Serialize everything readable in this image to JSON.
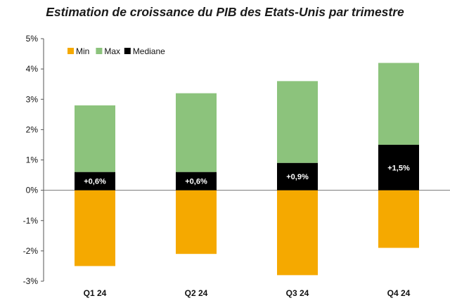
{
  "chart_data": {
    "type": "bar",
    "title": "Estimation de croissance du PIB des Etats-Unis par trimestre",
    "categories": [
      "Q1 24",
      "Q2 24",
      "Q3 24",
      "Q4 24"
    ],
    "series": [
      {
        "name": "Min",
        "color": "#f5a900",
        "values": [
          -2.5,
          -2.1,
          -2.8,
          -1.9
        ]
      },
      {
        "name": "Max",
        "color": "#8cc37c",
        "values": [
          2.8,
          3.2,
          3.6,
          4.2
        ]
      },
      {
        "name": "Mediane",
        "color": "#000000",
        "values": [
          0.6,
          0.6,
          0.9,
          1.5
        ]
      }
    ],
    "data_labels": [
      "+0,6%",
      "+0,6%",
      "+0,9%",
      "+1,5%"
    ],
    "y_ticks": [
      "5%",
      "4%",
      "3%",
      "2%",
      "1%",
      "0%",
      "-1%",
      "-2%",
      "-3%"
    ],
    "ylim": [
      -3,
      5
    ],
    "grid": false,
    "legend_position": "top-left"
  }
}
